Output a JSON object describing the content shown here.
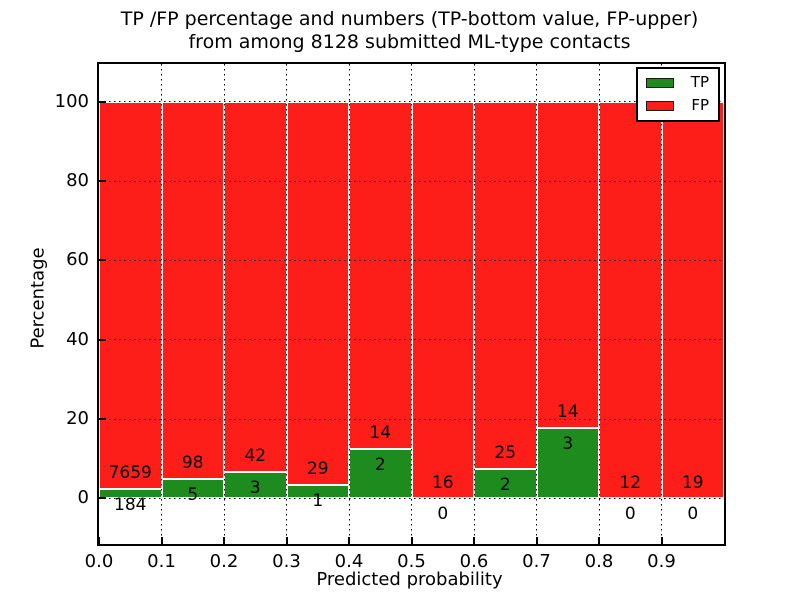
{
  "figure": {
    "title_line1": "TP /FP percentage and numbers (TP-bottom value, FP-upper)",
    "title_line2": "from among 8128 submitted ML-type contacts"
  },
  "chart_data": {
    "type": "bar",
    "subtype": "stacked-100-percent",
    "title": "TP /FP percentage and numbers (TP-bottom value, FP-upper)\nfrom among 8128 submitted ML-type contacts",
    "xlabel": "Predicted probability",
    "ylabel": "Percentage",
    "total_submitted_contacts": 8128,
    "bin_width": 0.1,
    "categories": [
      "0.0",
      "0.1",
      "0.2",
      "0.3",
      "0.4",
      "0.5",
      "0.6",
      "0.7",
      "0.8",
      "0.9"
    ],
    "series": [
      {
        "name": "TP",
        "color": "#1e8b1e",
        "counts": [
          184,
          5,
          3,
          1,
          2,
          0,
          2,
          3,
          0,
          0
        ]
      },
      {
        "name": "FP",
        "color": "#fd1e19",
        "counts": [
          7659,
          98,
          42,
          29,
          14,
          16,
          25,
          14,
          12,
          19
        ]
      }
    ],
    "percent_tp": [
      2.35,
      4.85,
      6.67,
      3.33,
      12.5,
      0,
      7.41,
      17.65,
      0,
      0
    ],
    "xticks": [
      "0.0",
      "0.1",
      "0.2",
      "0.3",
      "0.4",
      "0.5",
      "0.6",
      "0.7",
      "0.8",
      "0.9"
    ],
    "yticks": [
      0,
      20,
      40,
      60,
      80,
      100
    ],
    "xlim": [
      0.0,
      1.0
    ],
    "ylim": [
      -11.5,
      109.5
    ],
    "grid": true,
    "grid_style": "dotted",
    "legend": {
      "position": "upper-right",
      "entries": [
        {
          "label": "TP",
          "color": "#1e8b1e"
        },
        {
          "label": "FP",
          "color": "#fd1e19"
        }
      ]
    },
    "label_rule": "FP count printed above top of TP segment, TP count printed below top of TP segment"
  }
}
